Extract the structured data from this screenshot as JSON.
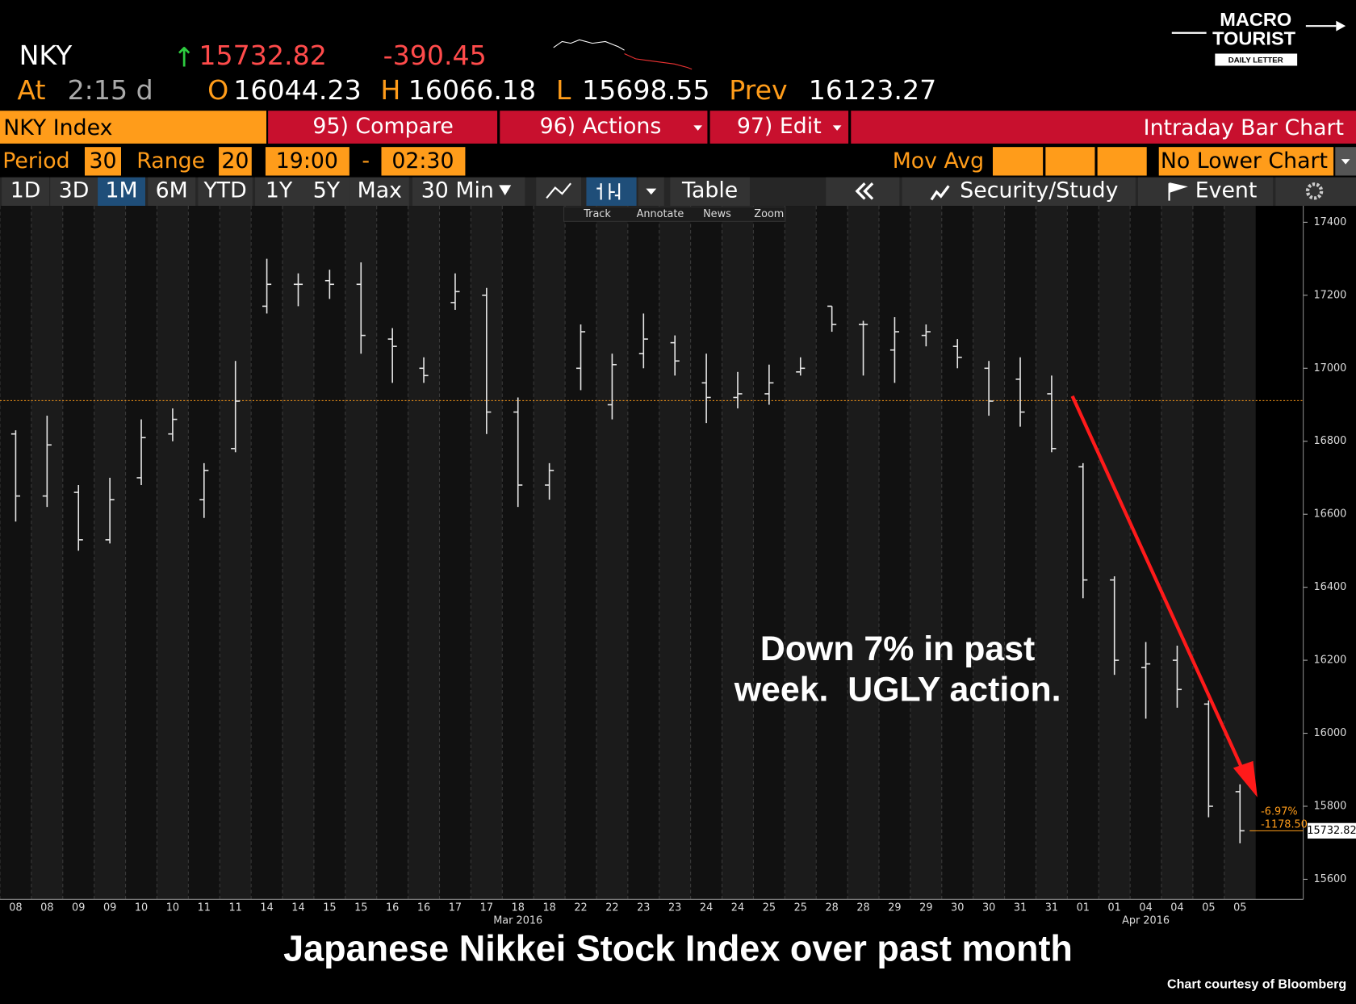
{
  "header": {
    "ticker": "NKY",
    "arrow": "↑",
    "last": "15732.82",
    "change": "-390.45",
    "at": "At",
    "time": "2:15 d",
    "open_label": "O",
    "open": "16044.23",
    "high_label": "H",
    "high": "16066.18",
    "low_label": "L",
    "low": "15698.55",
    "prev_label": "Prev",
    "prev": "16123.27"
  },
  "logo": {
    "line1": "MACRO",
    "line2": "TOURIST",
    "line3": "DAILY LETTER"
  },
  "toolbar": {
    "security": "NKY Index",
    "compare": "95) Compare",
    "actions": "96) Actions",
    "edit": "97) Edit",
    "view": "Intraday Bar Chart",
    "period_label": "Period",
    "period": "30",
    "range_label": "Range",
    "range": "20",
    "start": "19:00",
    "dash": "-",
    "end": "02:30",
    "mov_avg": "Mov Avg",
    "lower": "No Lower Chart",
    "ranges": [
      "1D",
      "3D",
      "1M",
      "6M",
      "YTD",
      "1Y",
      "5Y",
      "Max"
    ],
    "interval": "30 Min",
    "table": "Table",
    "security_study": "Security/Study",
    "event": "Event",
    "tools": [
      "Track",
      "Annotate",
      "News",
      "Zoom"
    ]
  },
  "chart_data": {
    "type": "ohlc",
    "color": "#e6e6e6",
    "categories": [
      "08",
      "08",
      "09",
      "09",
      "10",
      "10",
      "11",
      "11",
      "14",
      "14",
      "15",
      "15",
      "16",
      "16",
      "17",
      "17",
      "18",
      "18",
      "22",
      "22",
      "23",
      "23",
      "24",
      "24",
      "25",
      "25",
      "28",
      "28",
      "29",
      "29",
      "30",
      "30",
      "31",
      "31",
      "01",
      "01",
      "04",
      "04",
      "05",
      "05"
    ],
    "month_labels": [
      "Mar 2016",
      "Apr 2016"
    ],
    "open": [
      16820,
      16650,
      16660,
      16530,
      16700,
      16820,
      16640,
      16780,
      17170,
      17230,
      17240,
      17230,
      17080,
      17000,
      17180,
      17200,
      16880,
      16680,
      17000,
      16900,
      17040,
      17070,
      16960,
      16920,
      16930,
      16990,
      17170,
      17120,
      17050,
      17090,
      17060,
      17000,
      16970,
      16930,
      16730,
      16420,
      16180,
      16200,
      16080,
      15840
    ],
    "high": [
      16830,
      16870,
      16680,
      16700,
      16860,
      16890,
      16740,
      17020,
      17300,
      17260,
      17270,
      17290,
      17110,
      17030,
      17260,
      17220,
      16920,
      16740,
      17120,
      17040,
      17150,
      17090,
      17040,
      16990,
      17010,
      17030,
      17170,
      17130,
      17140,
      17120,
      17080,
      17020,
      17030,
      16980,
      16740,
      16430,
      16250,
      16240,
      16090,
      15860
    ],
    "low": [
      16580,
      16620,
      16500,
      16520,
      16680,
      16800,
      16590,
      16770,
      17150,
      17170,
      17190,
      17040,
      16960,
      16960,
      17160,
      16820,
      16620,
      16640,
      16940,
      16860,
      17000,
      16980,
      16850,
      16890,
      16900,
      16980,
      17100,
      16980,
      16960,
      17060,
      17000,
      16870,
      16840,
      16770,
      16370,
      16160,
      16040,
      16070,
      15770,
      15698.55
    ],
    "close": [
      16650,
      16790,
      16530,
      16640,
      16810,
      16860,
      16720,
      16910,
      17230,
      17230,
      17230,
      17090,
      17060,
      16980,
      17210,
      16880,
      16680,
      16720,
      17100,
      17010,
      17080,
      17020,
      16920,
      16930,
      16960,
      17000,
      17120,
      17120,
      17100,
      17100,
      17030,
      16910,
      16880,
      16780,
      16420,
      16200,
      16190,
      16120,
      15800,
      15732.82
    ],
    "ylim": [
      15545,
      17445
    ],
    "yticks": [
      15600,
      15800,
      16000,
      16200,
      16400,
      16600,
      16800,
      17000,
      17200,
      17400
    ],
    "reference_line": 16911.32,
    "reference_color": "#ff9c1a",
    "change_pct_label": "-6.97%",
    "change_label": "-1178.50",
    "last_price_label": "15732.82",
    "annotations": [
      "Down 7% in past",
      "week.  UGLY action."
    ],
    "caption": "Japanese Nikkei Stock Index over past month",
    "credit": "Chart courtesy of Bloomberg"
  }
}
